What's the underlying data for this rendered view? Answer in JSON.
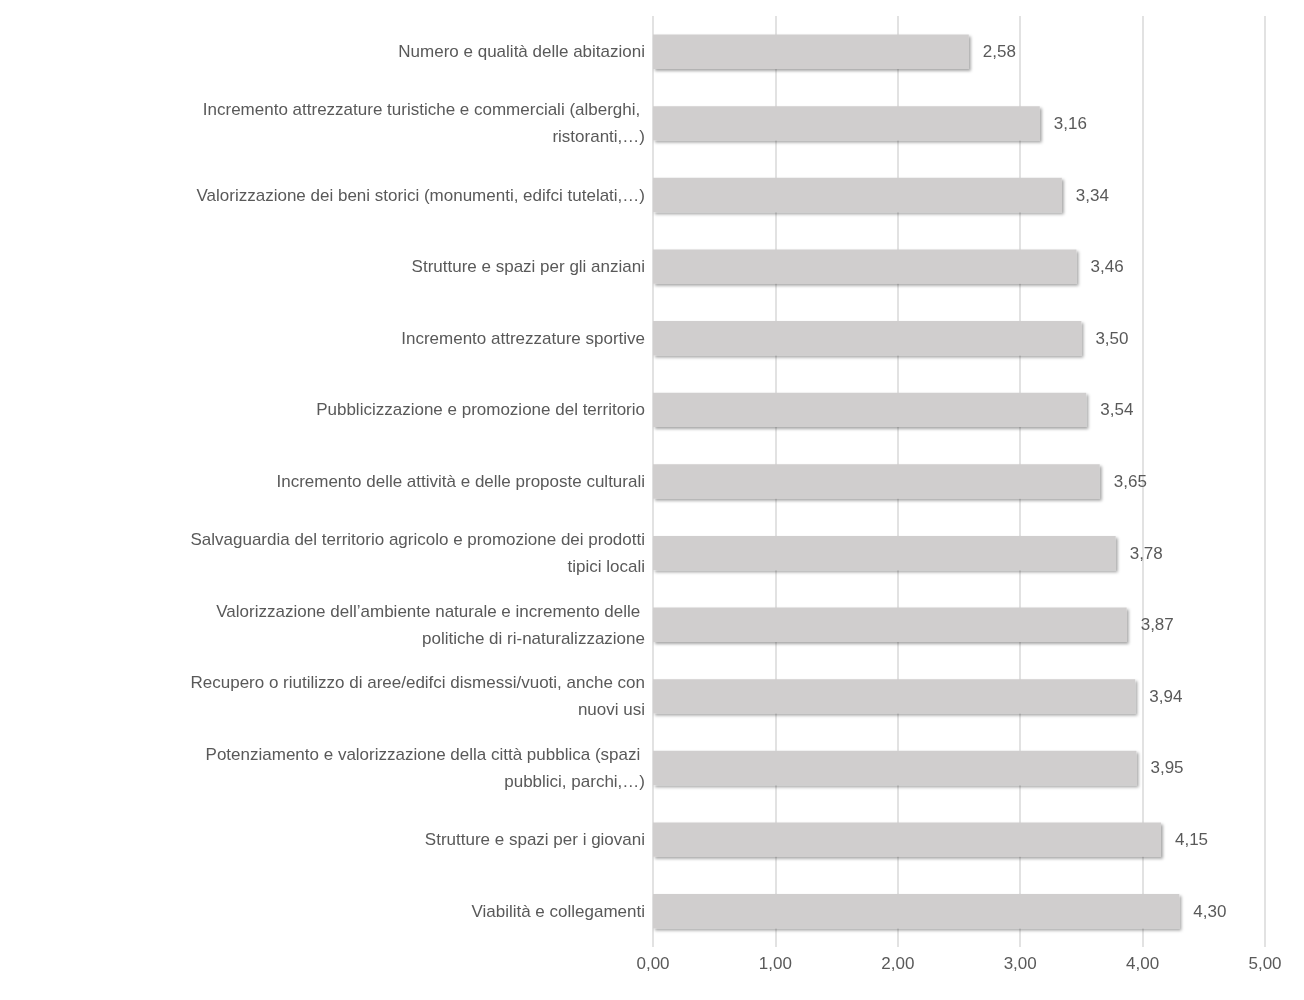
{
  "chart_data": {
    "type": "bar",
    "orientation": "horizontal",
    "categories": [
      "Numero e qualità delle abitazioni",
      "Incremento attrezzature turistiche e commerciali (alberghi, ristoranti,…)",
      "Valorizzazione dei beni storici (monumenti, edifci tutelati,…)",
      "Strutture e spazi per gli anziani",
      "Incremento attrezzature sportive",
      "Pubblicizzazione e promozione del territorio",
      "Incremento delle attività e delle proposte culturali",
      "Salvaguardia del territorio agricolo e promozione dei prodotti tipici locali",
      "Valorizzazione dell’ambiente naturale e incremento delle politiche di ri-naturalizzazione",
      "Recupero o riutilizzo di aree/edifci dismessi/vuoti, anche con nuovi usi",
      "Potenziamento e valorizzazione della città pubblica (spazi pubblici, parchi,…)",
      "Strutture e spazi per i giovani",
      "Viabilità e collegamenti"
    ],
    "values": [
      2.58,
      3.16,
      3.34,
      3.46,
      3.5,
      3.54,
      3.65,
      3.78,
      3.87,
      3.94,
      3.95,
      4.15,
      4.3
    ],
    "value_labels": [
      "2,58",
      "3,16",
      "3,34",
      "3,46",
      "3,50",
      "3,54",
      "3,65",
      "3,78",
      "3,87",
      "3,94",
      "3,95",
      "4,15",
      "4,30"
    ],
    "color": "#d0cece",
    "xlim": [
      0,
      5
    ],
    "xticks": [
      {
        "value": 0,
        "label": "0,00"
      },
      {
        "value": 1,
        "label": "1,00"
      },
      {
        "value": 2,
        "label": "2,00"
      },
      {
        "value": 3,
        "label": "3,00"
      },
      {
        "value": 4,
        "label": "4,00"
      },
      {
        "value": 5,
        "label": "5,00"
      }
    ],
    "grid": "x"
  }
}
